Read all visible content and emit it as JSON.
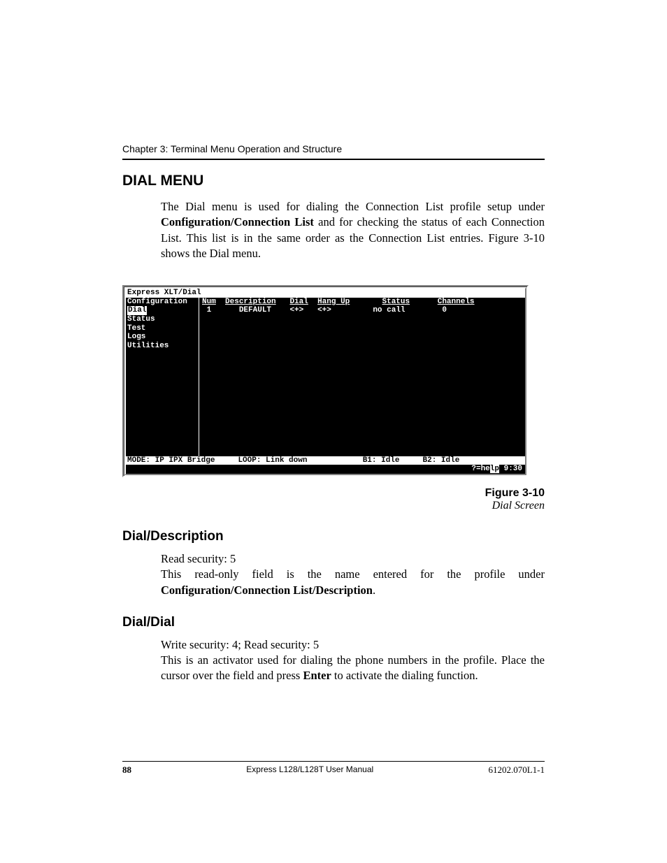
{
  "chapter_header": "Chapter 3: Terminal Menu Operation and Structure",
  "h1": "DIAL MENU",
  "para1_pre": "The Dial menu is used for dialing the Connection List profile setup under ",
  "para1_bold": "Configuration/Connection List",
  "para1_post": " and for checking the status of each Connection List.   This list is in the same order as the Connection List entries.  Figure 3-10 shows the Dial menu.",
  "terminal": {
    "title": "Express XLT/Dial",
    "sidebar": [
      "Configuration",
      "Dial",
      "Status",
      "Test",
      "Logs",
      "Utilities"
    ],
    "selected_index": 1,
    "columns": [
      "Num",
      "Description",
      "Dial",
      "Hang Up",
      "Status",
      "Channels"
    ],
    "row": {
      "num": "1",
      "description": "DEFAULT",
      "dial": "<+>",
      "hangup": "<+>",
      "status": "no call",
      "channels": "0"
    },
    "status_bar": {
      "mode": "MODE: IP IPX Bridge",
      "loop": "LOOP: Link down",
      "b1": "B1: Idle",
      "b2": "B2: Idle"
    },
    "help_line": {
      "help": "?=help",
      "time": "9:30"
    }
  },
  "figure": {
    "num": "Figure 3-10",
    "title": "Dial Screen"
  },
  "h2a": "Dial/Description",
  "para2_l1": "Read security: 5",
  "para2_l2_pre": "This read-only field is the name entered for the profile under ",
  "para2_l2_bold": "Configuration/Connection List/Description",
  "para2_l2_post": ".",
  "h2b": "Dial/Dial",
  "para3_l1": "Write security: 4; Read security: 5",
  "para3_l2_pre": "This is an activator used for dialing the phone numbers in the profile.  Place the cursor over the field and press ",
  "para3_l2_bold": "Enter",
  "para3_l2_post": " to activate the dialing function.",
  "footer": {
    "page": "88",
    "manual": "Express L128/L128T User Manual",
    "docnum": "61202.070L1-1"
  },
  "colors": {
    "text": "#000000",
    "bg": "#ffffff",
    "term_bg": "#000000",
    "term_fg": "#ffffff"
  }
}
